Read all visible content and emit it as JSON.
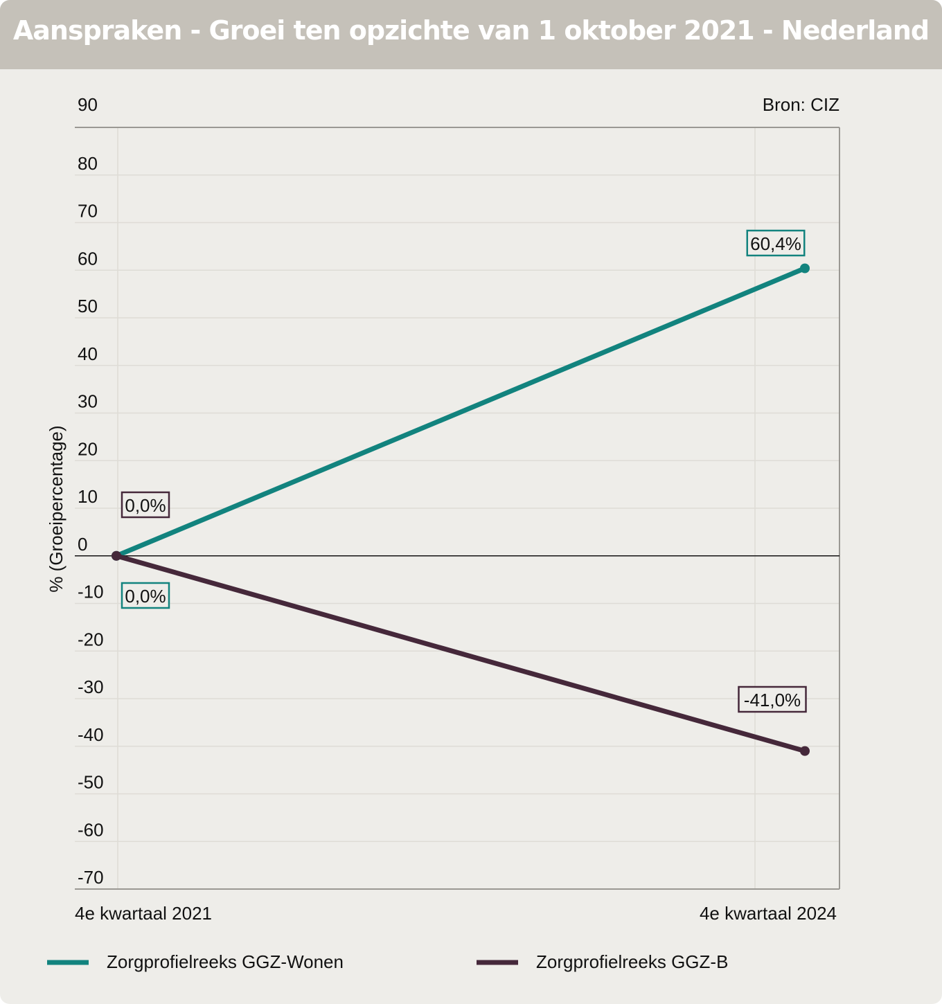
{
  "chart_data": {
    "type": "line",
    "title": "Aanspraken - Groei ten opzichte van 1 oktober 2021 - Nederland",
    "source": "Bron: CIZ",
    "ylabel": "% (Groeipercentage)",
    "xlabel": "",
    "ylim": [
      -70,
      90
    ],
    "yticks": [
      90,
      80,
      70,
      60,
      50,
      40,
      30,
      20,
      10,
      0,
      -10,
      -20,
      -30,
      -40,
      -50,
      -60,
      -70
    ],
    "categories": [
      "4e kwartaal 2021",
      "4e kwartaal 2024"
    ],
    "grid": true,
    "legend_position": "bottom",
    "series": [
      {
        "name": "Zorgprofielreeks GGZ-Wonen",
        "color": "#12837e",
        "values": [
          0.0,
          60.4
        ],
        "labels": [
          "0,0%",
          "60,4%"
        ]
      },
      {
        "name": "Zorgprofielreeks GGZ-B",
        "color": "#45283a",
        "values": [
          0.0,
          -41.0
        ],
        "labels": [
          "0,0%",
          "-41,0%"
        ]
      }
    ]
  }
}
